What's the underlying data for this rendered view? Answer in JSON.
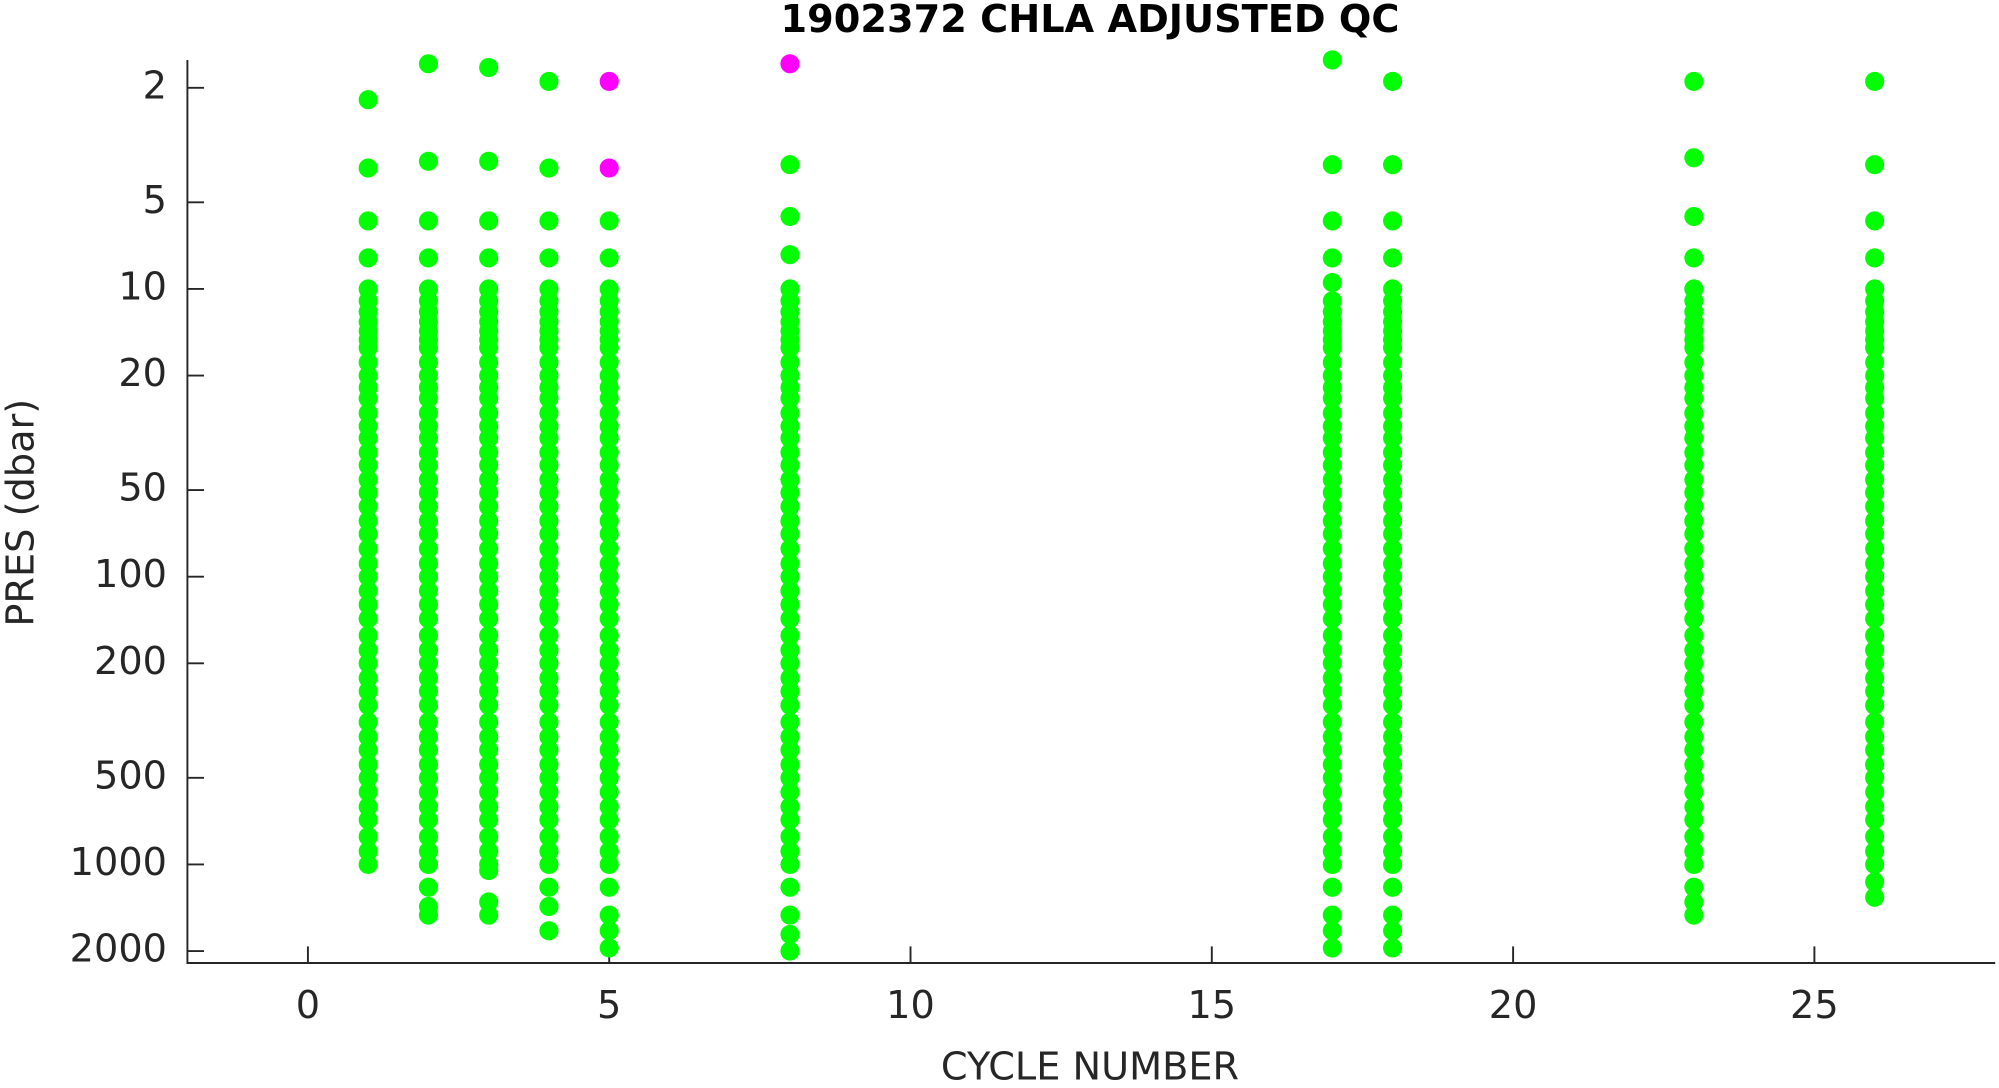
{
  "chart_data": {
    "type": "scatter",
    "title": "1902372  CHLA ADJUSTED QC",
    "xlabel": "CYCLE NUMBER",
    "ylabel": "PRES (dbar)",
    "xlim": [
      -2,
      28
    ],
    "xticks": [
      0,
      5,
      10,
      15,
      20,
      25
    ],
    "ylim": [
      1.6,
      2200
    ],
    "yticks": [
      2,
      5,
      10,
      20,
      50,
      100,
      200,
      500,
      1000,
      2000
    ],
    "yscale": "log",
    "y_reversed": true,
    "color": "#00ff00",
    "groups": [
      {
        "x": 1,
        "y": [
          2.2,
          3.8,
          5.8,
          7.8,
          10,
          11,
          12,
          13,
          14,
          15,
          16,
          18,
          20,
          22,
          24,
          27,
          30,
          33,
          37,
          41,
          46,
          51,
          57,
          64,
          71,
          80,
          90,
          100,
          112,
          125,
          140,
          160,
          180,
          200,
          225,
          250,
          280,
          320,
          360,
          400,
          450,
          500,
          560,
          630,
          700,
          800,
          900,
          1000
        ]
      },
      {
        "x": 2,
        "y": [
          1.65,
          3.6,
          5.8,
          7.8,
          10,
          11,
          12,
          13,
          14,
          15,
          16,
          18,
          20,
          22,
          24,
          27,
          30,
          33,
          37,
          41,
          46,
          51,
          57,
          64,
          71,
          80,
          90,
          100,
          112,
          125,
          140,
          160,
          180,
          200,
          225,
          250,
          280,
          320,
          360,
          400,
          450,
          500,
          560,
          630,
          700,
          800,
          900,
          1000,
          1200,
          1400,
          1500
        ]
      },
      {
        "x": 3,
        "y": [
          1.7,
          3.6,
          5.8,
          7.8,
          10,
          11,
          12,
          13,
          14,
          15,
          16,
          18,
          20,
          22,
          24,
          27,
          30,
          33,
          37,
          41,
          46,
          51,
          57,
          64,
          71,
          80,
          90,
          100,
          112,
          125,
          140,
          160,
          180,
          200,
          225,
          250,
          280,
          320,
          360,
          400,
          450,
          500,
          560,
          630,
          700,
          800,
          900,
          1000,
          1050,
          1350,
          1500
        ]
      },
      {
        "x": 4,
        "y": [
          1.9,
          3.8,
          5.8,
          7.8,
          10,
          11,
          12,
          13,
          14,
          15,
          16,
          18,
          20,
          22,
          24,
          27,
          30,
          33,
          37,
          41,
          46,
          51,
          57,
          64,
          71,
          80,
          90,
          100,
          112,
          125,
          140,
          160,
          180,
          200,
          225,
          250,
          280,
          320,
          360,
          400,
          450,
          500,
          560,
          630,
          700,
          800,
          900,
          1000,
          1200,
          1400,
          1700
        ]
      },
      {
        "x": 5,
        "y": [
          5.8,
          7.8,
          10,
          11,
          12,
          13,
          14,
          15,
          16,
          18,
          20,
          22,
          24,
          27,
          30,
          33,
          37,
          41,
          46,
          51,
          57,
          64,
          71,
          80,
          90,
          100,
          112,
          125,
          140,
          160,
          180,
          200,
          225,
          250,
          280,
          320,
          360,
          400,
          450,
          500,
          560,
          630,
          700,
          800,
          900,
          1000,
          1200,
          1500,
          1700,
          1950
        ]
      },
      {
        "x": 8,
        "y": [
          3.7,
          5.6,
          7.6,
          10,
          11,
          12,
          13,
          14,
          15,
          16,
          18,
          20,
          22,
          24,
          27,
          30,
          33,
          37,
          41,
          46,
          51,
          57,
          64,
          71,
          80,
          90,
          100,
          112,
          125,
          140,
          160,
          180,
          200,
          225,
          250,
          280,
          320,
          360,
          400,
          450,
          500,
          560,
          630,
          700,
          800,
          900,
          1000,
          1200,
          1500,
          1750,
          2000
        ]
      },
      {
        "x": 17,
        "y": [
          1.6,
          3.7,
          5.8,
          7.8,
          9.5,
          11,
          12,
          13,
          14,
          15,
          16,
          18,
          20,
          22,
          24,
          27,
          30,
          33,
          37,
          41,
          46,
          51,
          57,
          64,
          71,
          80,
          90,
          100,
          112,
          125,
          140,
          160,
          180,
          200,
          225,
          250,
          280,
          320,
          360,
          400,
          450,
          500,
          560,
          630,
          700,
          800,
          900,
          1000,
          1200,
          1500,
          1700,
          1950
        ]
      },
      {
        "x": 18,
        "y": [
          1.9,
          3.7,
          5.8,
          7.8,
          10,
          11,
          12,
          13,
          14,
          15,
          16,
          18,
          20,
          22,
          24,
          27,
          30,
          33,
          37,
          41,
          46,
          51,
          57,
          64,
          71,
          80,
          90,
          100,
          112,
          125,
          140,
          160,
          180,
          200,
          225,
          250,
          280,
          320,
          360,
          400,
          450,
          500,
          560,
          630,
          700,
          800,
          900,
          1000,
          1200,
          1500,
          1700,
          1950
        ]
      },
      {
        "x": 23,
        "y": [
          1.9,
          3.5,
          5.6,
          7.8,
          10,
          11,
          12,
          13,
          14,
          15,
          16,
          18,
          20,
          22,
          24,
          27,
          30,
          33,
          37,
          41,
          46,
          51,
          57,
          64,
          71,
          80,
          90,
          100,
          112,
          125,
          140,
          160,
          180,
          200,
          225,
          250,
          280,
          320,
          360,
          400,
          450,
          500,
          560,
          630,
          700,
          800,
          900,
          1000,
          1200,
          1350,
          1500
        ]
      },
      {
        "x": 26,
        "y": [
          1.9,
          3.7,
          5.8,
          7.8,
          10,
          11,
          12,
          13,
          14,
          15,
          16,
          18,
          20,
          22,
          24,
          27,
          30,
          33,
          37,
          41,
          46,
          51,
          57,
          64,
          71,
          80,
          90,
          100,
          112,
          125,
          140,
          160,
          180,
          200,
          225,
          250,
          280,
          320,
          360,
          400,
          450,
          500,
          560,
          630,
          700,
          800,
          900,
          1000,
          1150,
          1300
        ]
      }
    ],
    "flagged": {
      "color": "#ff00ff",
      "x": [
        5,
        5,
        8
      ],
      "y": [
        1.9,
        3.8,
        1.65
      ]
    }
  }
}
